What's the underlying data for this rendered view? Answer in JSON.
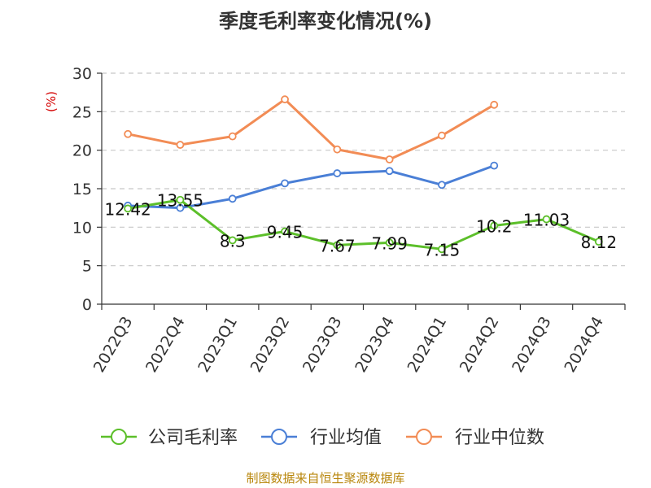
{
  "source_text": "制图数据来自恒生聚源数据库",
  "chart_data": {
    "type": "line",
    "title": "季度毛利率变化情况(%)",
    "xlabel": "",
    "ylabel": "(%)",
    "ylim": [
      0,
      30
    ],
    "yticks": [
      0,
      5,
      10,
      15,
      20,
      25,
      30
    ],
    "grid": true,
    "legend_position": "bottom",
    "categories": [
      "2022Q3",
      "2022Q4",
      "2023Q1",
      "2023Q2",
      "2023Q3",
      "2023Q4",
      "2024Q1",
      "2024Q2",
      "2024Q3",
      "2024Q4"
    ],
    "series": [
      {
        "name": "公司毛利率",
        "color": "#5cbf2a",
        "values": [
          12.42,
          13.55,
          8.3,
          9.45,
          7.67,
          7.99,
          7.15,
          10.2,
          11.03,
          8.12
        ],
        "data_labels": [
          "12.42",
          "13.55",
          "8.3",
          "9.45",
          "7.67",
          "7.99",
          "7.15",
          "10.2",
          "11.03",
          "8.12"
        ]
      },
      {
        "name": "行业均值",
        "color": "#4a7fd6",
        "values": [
          12.8,
          12.5,
          13.7,
          15.7,
          17.0,
          17.3,
          15.5,
          18.0,
          null,
          null
        ]
      },
      {
        "name": "行业中位数",
        "color": "#f28c55",
        "values": [
          22.1,
          20.7,
          21.8,
          26.6,
          20.1,
          18.8,
          21.9,
          25.9,
          null,
          null
        ]
      }
    ]
  }
}
